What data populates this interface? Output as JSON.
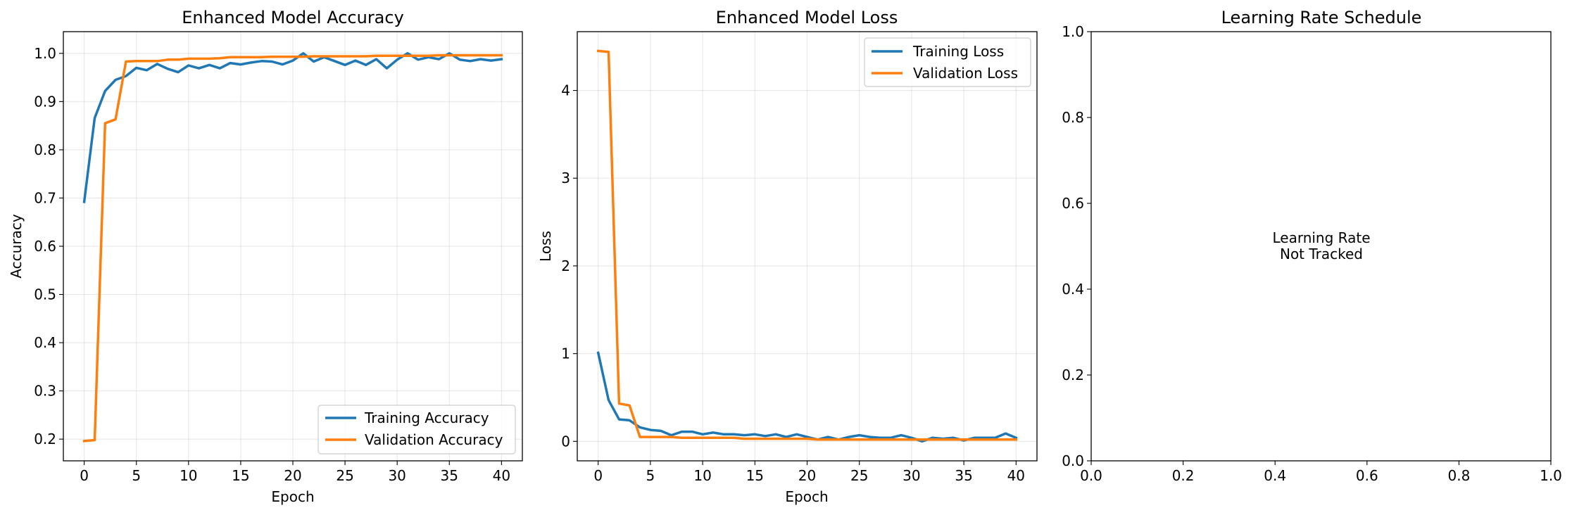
{
  "chart_data": [
    {
      "type": "line",
      "title": "Enhanced Model Accuracy",
      "xlabel": "Epoch",
      "ylabel": "Accuracy",
      "xlim": [
        -2,
        42
      ],
      "ylim": [
        0.155,
        1.045
      ],
      "xticks": [
        0,
        5,
        10,
        15,
        20,
        25,
        30,
        35,
        40
      ],
      "yticks": [
        0.2,
        0.3,
        0.4,
        0.5,
        0.6,
        0.7,
        0.8,
        0.9,
        1.0
      ],
      "ytick_labels": [
        "0.2",
        "0.3",
        "0.4",
        "0.5",
        "0.6",
        "0.7",
        "0.8",
        "0.9",
        "1.0"
      ],
      "grid": true,
      "legend": "lower-right",
      "x": [
        0,
        1,
        2,
        3,
        4,
        5,
        6,
        7,
        8,
        9,
        10,
        11,
        12,
        13,
        14,
        15,
        16,
        17,
        18,
        19,
        20,
        21,
        22,
        23,
        24,
        25,
        26,
        27,
        28,
        29,
        30,
        31,
        32,
        33,
        34,
        35,
        36,
        37,
        38,
        39,
        40
      ],
      "series": [
        {
          "name": "Training Accuracy",
          "color": "#1f77b4",
          "values": [
            0.692,
            0.866,
            0.922,
            0.945,
            0.953,
            0.97,
            0.965,
            0.978,
            0.968,
            0.961,
            0.975,
            0.969,
            0.976,
            0.969,
            0.98,
            0.977,
            0.981,
            0.984,
            0.983,
            0.977,
            0.985,
            1.0,
            0.983,
            0.992,
            0.984,
            0.976,
            0.985,
            0.976,
            0.988,
            0.969,
            0.987,
            1.0,
            0.987,
            0.992,
            0.988,
            1.0,
            0.987,
            0.984,
            0.988,
            0.985,
            0.988
          ]
        },
        {
          "name": "Validation Accuracy",
          "color": "#ff7f0e",
          "values": [
            0.196,
            0.198,
            0.855,
            0.863,
            0.983,
            0.984,
            0.984,
            0.984,
            0.987,
            0.987,
            0.989,
            0.989,
            0.989,
            0.99,
            0.992,
            0.992,
            0.992,
            0.992,
            0.993,
            0.993,
            0.993,
            0.993,
            0.994,
            0.994,
            0.994,
            0.994,
            0.994,
            0.994,
            0.995,
            0.995,
            0.995,
            0.995,
            0.995,
            0.995,
            0.996,
            0.996,
            0.996,
            0.996,
            0.996,
            0.996,
            0.996
          ]
        }
      ]
    },
    {
      "type": "line",
      "title": "Enhanced Model Loss",
      "xlabel": "Epoch",
      "ylabel": "Loss",
      "xlim": [
        -2,
        42
      ],
      "ylim": [
        -0.222,
        4.67
      ],
      "xticks": [
        0,
        5,
        10,
        15,
        20,
        25,
        30,
        35,
        40
      ],
      "yticks": [
        0,
        1,
        2,
        3,
        4
      ],
      "ytick_labels": [
        "0",
        "1",
        "2",
        "3",
        "4"
      ],
      "grid": true,
      "legend": "top-right",
      "x": [
        0,
        1,
        2,
        3,
        4,
        5,
        6,
        7,
        8,
        9,
        10,
        11,
        12,
        13,
        14,
        15,
        16,
        17,
        18,
        19,
        20,
        21,
        22,
        23,
        24,
        25,
        26,
        27,
        28,
        29,
        30,
        31,
        32,
        33,
        34,
        35,
        36,
        37,
        38,
        39,
        40
      ],
      "series": [
        {
          "name": "Training Loss",
          "color": "#1f77b4",
          "values": [
            1.01,
            0.47,
            0.25,
            0.24,
            0.16,
            0.13,
            0.12,
            0.07,
            0.11,
            0.11,
            0.08,
            0.1,
            0.08,
            0.08,
            0.07,
            0.08,
            0.06,
            0.08,
            0.05,
            0.08,
            0.05,
            0.02,
            0.05,
            0.02,
            0.05,
            0.07,
            0.05,
            0.04,
            0.04,
            0.07,
            0.04,
            0.0,
            0.04,
            0.03,
            0.04,
            0.01,
            0.04,
            0.04,
            0.04,
            0.09,
            0.04
          ]
        },
        {
          "name": "Validation Loss",
          "color": "#ff7f0e",
          "values": [
            4.45,
            4.44,
            0.43,
            0.41,
            0.05,
            0.05,
            0.05,
            0.05,
            0.04,
            0.04,
            0.04,
            0.04,
            0.04,
            0.04,
            0.03,
            0.03,
            0.03,
            0.03,
            0.03,
            0.03,
            0.03,
            0.02,
            0.02,
            0.02,
            0.02,
            0.02,
            0.02,
            0.02,
            0.02,
            0.02,
            0.02,
            0.02,
            0.02,
            0.02,
            0.02,
            0.02,
            0.02,
            0.02,
            0.02,
            0.02,
            0.02
          ]
        }
      ]
    },
    {
      "type": "line",
      "title": "Learning Rate Schedule",
      "xlabel": "",
      "ylabel": "",
      "xlim": [
        0,
        1
      ],
      "ylim": [
        0,
        1
      ],
      "xticks": [
        0,
        0.2,
        0.4,
        0.6,
        0.8,
        1.0
      ],
      "xtick_labels": [
        "0.0",
        "0.2",
        "0.4",
        "0.6",
        "0.8",
        "1.0"
      ],
      "yticks": [
        0,
        0.2,
        0.4,
        0.6,
        0.8,
        1.0
      ],
      "ytick_labels": [
        "0.0",
        "0.2",
        "0.4",
        "0.6",
        "0.8",
        "1.0"
      ],
      "grid": false,
      "annotation": [
        "Learning Rate",
        "Not Tracked"
      ],
      "series": []
    }
  ]
}
